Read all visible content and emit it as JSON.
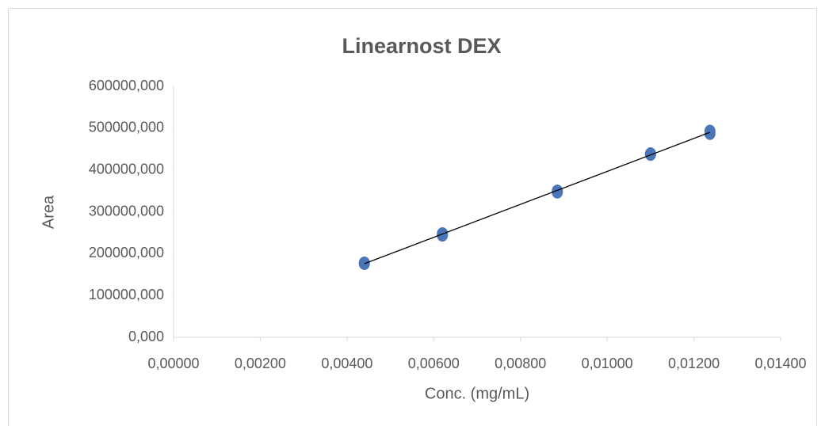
{
  "chart_data": {
    "type": "scatter",
    "title": "Linearnost DEX",
    "x_label": "Conc. (mg/mL)",
    "y_label": "Area",
    "series": [
      {
        "color": "#4a76b8",
        "x": [
          0.0044,
          0.0044,
          0.0062,
          0.0062,
          0.00885,
          0.00885,
          0.011,
          0.011,
          0.01237,
          0.01237
        ],
        "values": [
          176000,
          178000,
          244000,
          248000,
          347000,
          350000,
          437000,
          439000,
          487000,
          493000
        ]
      }
    ],
    "trendline": {
      "color": "#000000",
      "x": [
        0.0044,
        0.01237
      ],
      "values": [
        176000,
        490000
      ]
    },
    "xlim": [
      0,
      0.014
    ],
    "xticks": [
      {
        "value": 0,
        "label": "0,00000"
      },
      {
        "value": 0.002,
        "label": "0,00200"
      },
      {
        "value": 0.004,
        "label": "0,00400"
      },
      {
        "value": 0.006,
        "label": "0,00600"
      },
      {
        "value": 0.008,
        "label": "0,00800"
      },
      {
        "value": 0.01,
        "label": "0,01000"
      },
      {
        "value": 0.012,
        "label": "0,01200"
      },
      {
        "value": 0.014,
        "label": "0,01400"
      }
    ],
    "ylim": [
      0,
      600000
    ],
    "yticks": [
      {
        "value": 0,
        "label": "0,000"
      },
      {
        "value": 100000,
        "label": "100000,000"
      },
      {
        "value": 200000,
        "label": "200000,000"
      },
      {
        "value": 300000,
        "label": "300000,000"
      },
      {
        "value": 400000,
        "label": "400000,000"
      },
      {
        "value": 500000,
        "label": "500000,000"
      },
      {
        "value": 600000,
        "label": "600000,000"
      }
    ],
    "grid": false
  }
}
